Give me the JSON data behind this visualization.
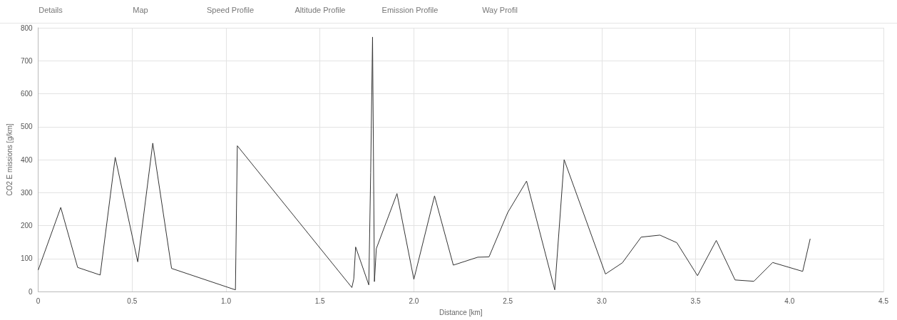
{
  "chart_data": {
    "type": "line",
    "xlabel": "Distance [km]",
    "ylabel": "CO2 E missions [g/km]",
    "annotations": [
      "Details",
      "Map",
      "Speed Profile",
      "Altitude Profile",
      "Emission Profile",
      "Way Profil"
    ],
    "x": [
      0,
      0.12,
      0.21,
      0.33,
      0.41,
      0.53,
      0.61,
      0.71,
      1.05,
      1.06,
      1.67,
      1.68,
      1.69,
      1.76,
      1.77,
      1.78,
      1.79,
      1.8,
      1.91,
      2.0,
      2.11,
      2.21,
      2.34,
      2.4,
      2.5,
      2.6,
      2.75,
      2.8,
      3.02,
      3.11,
      3.21,
      3.31,
      3.4,
      3.51,
      3.61,
      3.71,
      3.81,
      3.91,
      4.07,
      4.11
    ],
    "series": [
      {
        "color": "#333333",
        "values": [
          65,
          255,
          73,
          50,
          407,
          90,
          450,
          70,
          5,
          442,
          12,
          38,
          135,
          20,
          360,
          772,
          30,
          130,
          297,
          37,
          290,
          80,
          104,
          105,
          240,
          335,
          5,
          400,
          53,
          87,
          165,
          171,
          148,
          48,
          155,
          35,
          31,
          88,
          61,
          160
        ]
      }
    ],
    "xlim": [
      0,
      4.5
    ],
    "xticks": [
      0,
      0.5,
      {
        "value": 1,
        "label": "1.0"
      },
      1.5,
      {
        "value": 2,
        "label": "2.0"
      },
      2.5,
      {
        "value": 3,
        "label": "3.0"
      },
      3.5,
      {
        "value": 4,
        "label": "4.0"
      },
      4.5
    ],
    "ylim": [
      0,
      800
    ],
    "yticks": [
      0,
      100,
      200,
      300,
      400,
      500,
      600,
      700,
      800
    ],
    "grid": true,
    "marker": "none",
    "line_style": "solid"
  }
}
